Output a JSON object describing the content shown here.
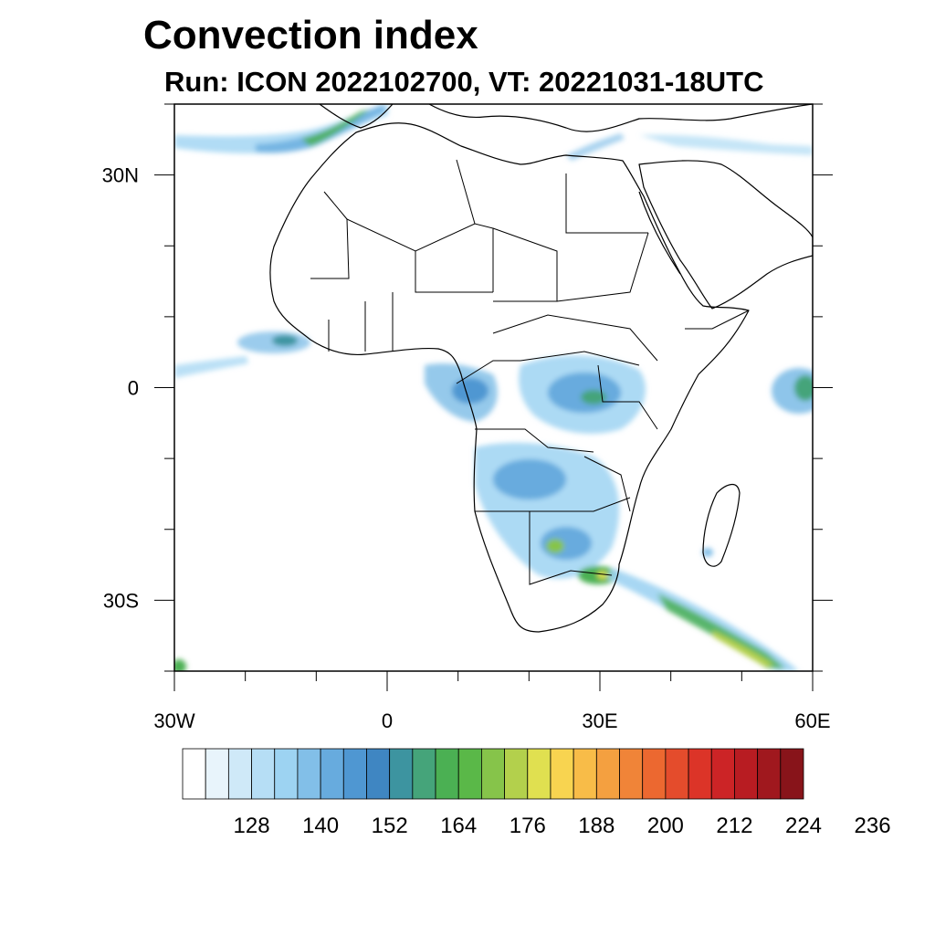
{
  "title": "Convection index",
  "subtitle": "Run: ICON 2022102700,  VT: 20221031-18UTC",
  "map": {
    "lon_range": [
      -30,
      60
    ],
    "lat_range": [
      -40,
      40
    ],
    "x_ticks": [
      {
        "lon": -30,
        "label": "30W"
      },
      {
        "lon": 0,
        "label": "0"
      },
      {
        "lon": 30,
        "label": "30E"
      },
      {
        "lon": 60,
        "label": "60E"
      }
    ],
    "y_ticks": [
      {
        "lat": 30,
        "label": "30N"
      },
      {
        "lat": 0,
        "label": "0"
      },
      {
        "lat": -30,
        "label": "30S"
      }
    ]
  },
  "colorbar": {
    "colors": [
      "#ffffff",
      "#e8f4fb",
      "#cfe9f8",
      "#b6def5",
      "#9dd3f2",
      "#82bfe8",
      "#67abde",
      "#4f97d2",
      "#3f86c2",
      "#3d94a0",
      "#45a47a",
      "#4bb053",
      "#5ab848",
      "#86c44a",
      "#b3d04c",
      "#e0e050",
      "#f8d450",
      "#f8bc48",
      "#f4a040",
      "#f08438",
      "#ec6830",
      "#e44c2c",
      "#dc3428",
      "#cc2426",
      "#b81c22",
      "#a0181e",
      "#88141a"
    ],
    "labels": [
      "128",
      "140",
      "152",
      "164",
      "176",
      "188",
      "200",
      "212",
      "224",
      "236"
    ]
  }
}
